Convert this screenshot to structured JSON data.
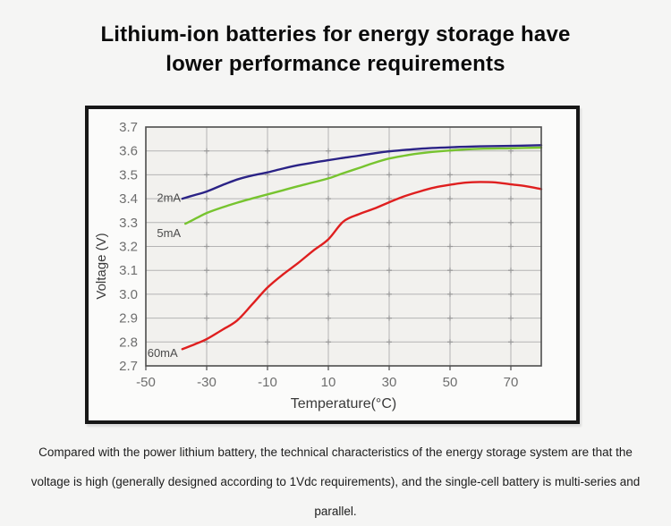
{
  "title": {
    "line1": "Lithium-ion batteries for energy storage have",
    "line2": "lower performance requirements"
  },
  "caption": {
    "line1": "Compared with the power lithium battery, the technical characteristics of the energy storage system are that the",
    "line2": "voltage is high (generally designed according to 1Vdc requirements), and the single-cell battery is multi-series and parallel."
  },
  "chart_data": {
    "type": "line",
    "title": "",
    "xlabel": "Temperature(°C)",
    "ylabel": "Voltage (V)",
    "xlim": [
      -50,
      80
    ],
    "ylim": [
      2.7,
      3.7
    ],
    "x_tick_labels": [
      "-50",
      "-30",
      "-10",
      "10",
      "30",
      "50",
      "70"
    ],
    "y_tick_labels": [
      "3.7",
      "3.6",
      "3.5",
      "3.4",
      "3.3",
      "3.2",
      "3.1",
      "3.0",
      "2.9",
      "2.8",
      "2.7"
    ],
    "grid": true,
    "legend_position": "inline-labels-at-line-start",
    "colors": {
      "plot_background": "#f2f1ee",
      "gridline": "#b4b4b4",
      "grid_cross": "#9a9a9a",
      "plot_border": "#4d4d4d",
      "tick_text": "#6e6e6e",
      "axis_title_text": "#3a3a3a"
    },
    "series": [
      {
        "name": "2mA",
        "color": "#2b2386",
        "label_anchor": {
          "x": -38.5,
          "y": 3.402
        },
        "points": [
          [
            -38,
            3.4
          ],
          [
            -34,
            3.415
          ],
          [
            -30,
            3.43
          ],
          [
            -25,
            3.456
          ],
          [
            -20,
            3.48
          ],
          [
            -15,
            3.497
          ],
          [
            -10,
            3.51
          ],
          [
            -5,
            3.526
          ],
          [
            0,
            3.54
          ],
          [
            5,
            3.551
          ],
          [
            10,
            3.561
          ],
          [
            15,
            3.571
          ],
          [
            20,
            3.58
          ],
          [
            25,
            3.59
          ],
          [
            30,
            3.598
          ],
          [
            40,
            3.609
          ],
          [
            50,
            3.615
          ],
          [
            60,
            3.619
          ],
          [
            70,
            3.621
          ],
          [
            80,
            3.624
          ]
        ]
      },
      {
        "name": "5mA",
        "color": "#77c42f",
        "label_anchor": {
          "x": -38.5,
          "y": 3.255
        },
        "points": [
          [
            -37,
            3.295
          ],
          [
            -33,
            3.321
          ],
          [
            -30,
            3.34
          ],
          [
            -25,
            3.363
          ],
          [
            -20,
            3.383
          ],
          [
            -15,
            3.401
          ],
          [
            -10,
            3.418
          ],
          [
            -5,
            3.435
          ],
          [
            0,
            3.452
          ],
          [
            5,
            3.468
          ],
          [
            10,
            3.485
          ],
          [
            15,
            3.507
          ],
          [
            20,
            3.528
          ],
          [
            25,
            3.55
          ],
          [
            30,
            3.568
          ],
          [
            35,
            3.58
          ],
          [
            40,
            3.59
          ],
          [
            50,
            3.602
          ],
          [
            60,
            3.609
          ],
          [
            70,
            3.611
          ],
          [
            80,
            3.614
          ]
        ]
      },
      {
        "name": "60mA",
        "color": "#df1f1f",
        "label_anchor": {
          "x": -39.5,
          "y": 2.752
        },
        "points": [
          [
            -38,
            2.77
          ],
          [
            -34,
            2.79
          ],
          [
            -30,
            2.812
          ],
          [
            -25,
            2.85
          ],
          [
            -20,
            2.89
          ],
          [
            -15,
            2.958
          ],
          [
            -10,
            3.028
          ],
          [
            -5,
            3.082
          ],
          [
            0,
            3.13
          ],
          [
            5,
            3.182
          ],
          [
            10,
            3.23
          ],
          [
            15,
            3.305
          ],
          [
            20,
            3.335
          ],
          [
            25,
            3.358
          ],
          [
            30,
            3.385
          ],
          [
            35,
            3.41
          ],
          [
            40,
            3.43
          ],
          [
            45,
            3.447
          ],
          [
            50,
            3.458
          ],
          [
            55,
            3.467
          ],
          [
            60,
            3.47
          ],
          [
            65,
            3.468
          ],
          [
            70,
            3.46
          ],
          [
            75,
            3.452
          ],
          [
            80,
            3.44
          ]
        ]
      }
    ]
  }
}
